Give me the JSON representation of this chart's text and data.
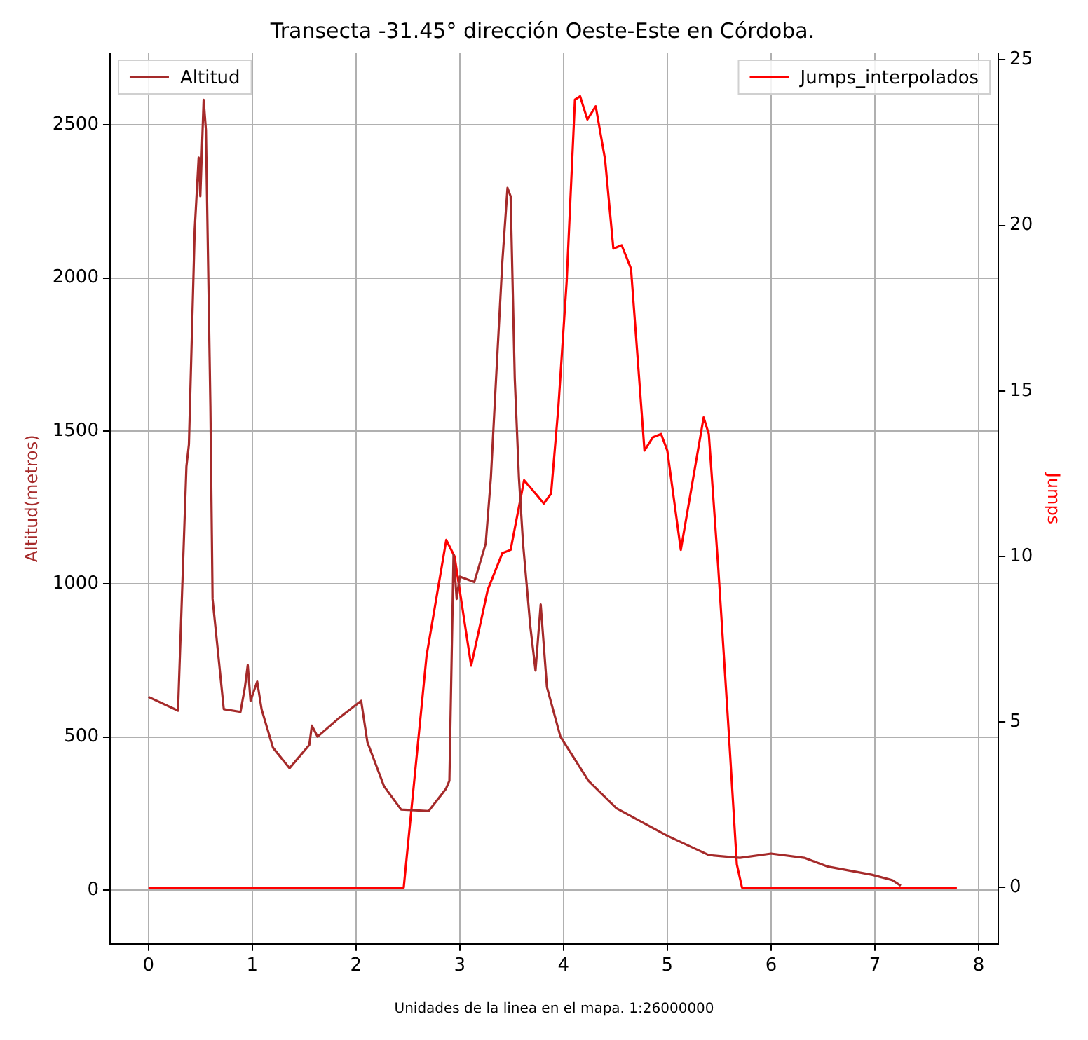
{
  "chart_data": {
    "type": "line",
    "title": "Transecta -31.45° dirección Oeste-Este en Córdoba.",
    "xlabel": "Unidades de la linea en el mapa. 1:26000000",
    "ylabel": "Altitud(metros)",
    "y2label": "Jumps",
    "xlim": [
      -0.37,
      8.19
    ],
    "xticks": [
      0,
      1,
      2,
      3,
      4,
      5,
      6,
      7,
      8
    ],
    "ylim": [
      -176,
      2734
    ],
    "yticks": [
      0,
      500,
      1000,
      1500,
      2000,
      2500
    ],
    "y2lim": [
      -1.7,
      25.2
    ],
    "y2ticks": [
      0,
      5,
      10,
      15,
      20,
      25
    ],
    "grid": true,
    "legend": "top",
    "marker": "none",
    "line_style": "solid",
    "series": [
      {
        "name": "Altitud",
        "color": "#a52a2a",
        "x": [
          0,
          0.285,
          0.366,
          0.39,
          0.446,
          0.484,
          0.5,
          0.532,
          0.554,
          0.58,
          0.597,
          0.618,
          0.726,
          0.887,
          0.93,
          0.957,
          0.984,
          1.048,
          1.09,
          1.2,
          1.36,
          1.55,
          1.575,
          1.63,
          1.844,
          2.05,
          2.11,
          2.27,
          2.435,
          2.7,
          2.866,
          2.9,
          2.94,
          2.97,
          3.0,
          3.14,
          3.25,
          3.3,
          3.35,
          3.41,
          3.46,
          3.49,
          3.53,
          3.57,
          3.61,
          3.68,
          3.73,
          3.78,
          3.84,
          3.97,
          4.24,
          4.51,
          5.0,
          5.4,
          5.7,
          6.0,
          6.32,
          6.54,
          6.97,
          7.17,
          7.25
        ],
        "values": [
          631,
          586,
          1384,
          1456,
          2159,
          2393,
          2267,
          2582,
          2483,
          1943,
          1582,
          951,
          591,
          582,
          663,
          735,
          618,
          681,
          591,
          465,
          398,
          474,
          537,
          501,
          564,
          618,
          483,
          339,
          263,
          258,
          330,
          357,
          1096,
          951,
          1024,
          1006,
          1132,
          1348,
          1672,
          2051,
          2294,
          2267,
          1672,
          1348,
          1132,
          861,
          717,
          933,
          663,
          501,
          357,
          267,
          177,
          114,
          105,
          119,
          105,
          77,
          50,
          32,
          14
        ]
      },
      {
        "name": "Jumps_interpolados",
        "color": "#ff0000",
        "axis": "y2",
        "x": [
          0,
          2.46,
          2.68,
          2.87,
          2.95,
          3.11,
          3.27,
          3.41,
          3.49,
          3.62,
          3.73,
          3.81,
          3.88,
          3.95,
          4.03,
          4.11,
          4.16,
          4.23,
          4.31,
          4.4,
          4.48,
          4.56,
          4.65,
          4.78,
          4.86,
          4.94,
          5.0,
          5.13,
          5.35,
          5.4,
          5.49,
          5.59,
          5.67,
          5.72,
          7.79
        ],
        "values": [
          0,
          0,
          7,
          10.5,
          10,
          6.7,
          9,
          10.1,
          10.2,
          12.3,
          11.9,
          11.6,
          11.9,
          14.5,
          18.3,
          23.8,
          23.9,
          23.2,
          23.6,
          22,
          19.3,
          19.4,
          18.7,
          13.2,
          13.6,
          13.7,
          13.2,
          10.2,
          14.2,
          13.7,
          9.7,
          4.8,
          0.7,
          0,
          0
        ]
      }
    ]
  }
}
